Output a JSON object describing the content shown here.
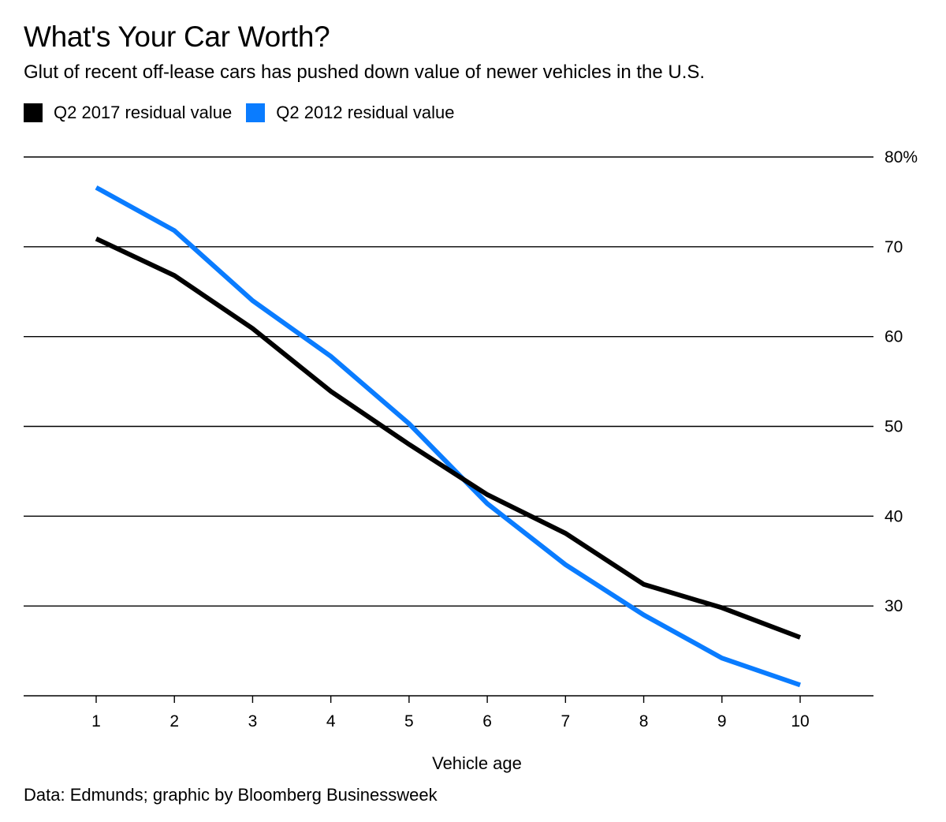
{
  "header": {
    "title": "What's Your Car Worth?",
    "subtitle": "Glut of recent off-lease cars has pushed down value of newer vehicles in the U.S."
  },
  "footer": {
    "source": "Data: Edmunds; graphic by Bloomberg Businessweek"
  },
  "colors": {
    "series_2017": "#000000",
    "series_2012": "#0a7cff",
    "gridline": "#000000"
  },
  "chart_data": {
    "type": "line",
    "title": "What's Your Car Worth?",
    "subtitle": "Glut of recent off-lease cars has pushed down value of newer vehicles in the U.S.",
    "xlabel": "Vehicle age",
    "ylabel": "",
    "x": [
      1,
      2,
      3,
      4,
      5,
      6,
      7,
      8,
      9,
      10
    ],
    "x_ticks": [
      "1",
      "2",
      "3",
      "4",
      "5",
      "6",
      "7",
      "8",
      "9",
      "10"
    ],
    "xlim": [
      0.1,
      10.95
    ],
    "ylim": [
      20,
      80
    ],
    "y_ticks": [
      30,
      40,
      50,
      60,
      70,
      80
    ],
    "y_tick_labels": [
      "30",
      "40",
      "50",
      "60",
      "70",
      "80%"
    ],
    "grid": true,
    "legend_position": "top-left",
    "series": [
      {
        "name": "Q2 2017 residual value",
        "color": "#000000",
        "values": [
          70.9,
          66.8,
          60.9,
          53.9,
          48.0,
          42.4,
          38.1,
          32.4,
          29.8,
          26.5
        ]
      },
      {
        "name": "Q2 2012 residual value",
        "color": "#0a7cff",
        "values": [
          76.6,
          71.8,
          64.0,
          57.8,
          50.3,
          41.4,
          34.6,
          29.0,
          24.2,
          21.2
        ]
      }
    ]
  }
}
